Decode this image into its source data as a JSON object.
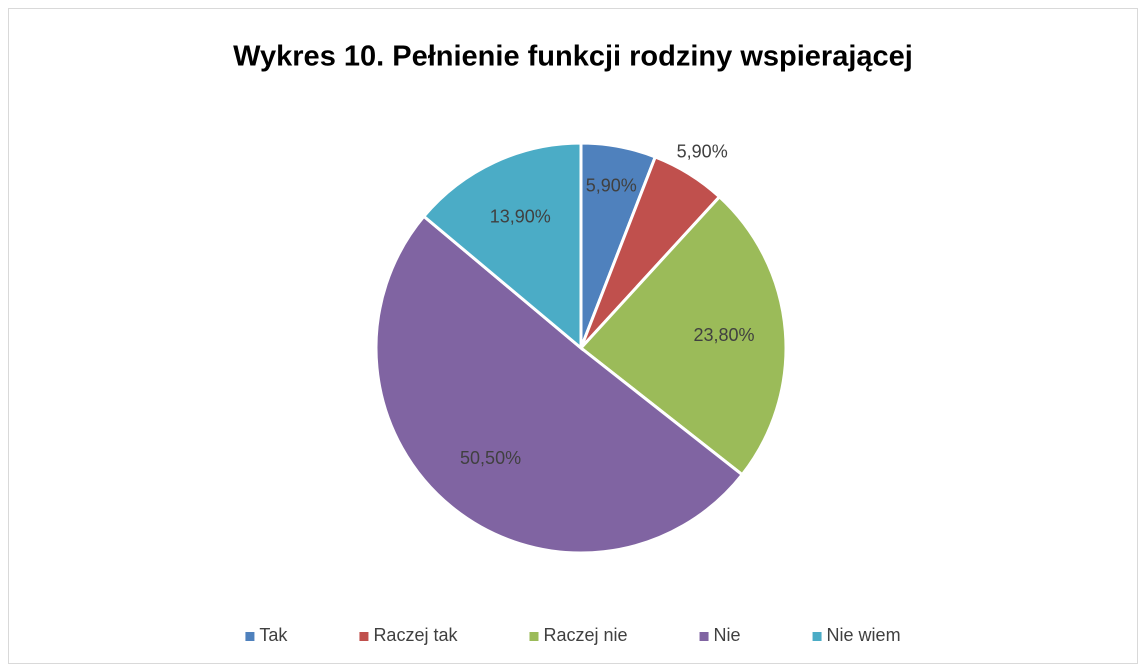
{
  "chart_data": {
    "type": "pie",
    "title": "Wykres 10. Pełnienie funkcji rodziny wspierającej",
    "categories": [
      "Tak",
      "Raczej tak",
      "Raczej nie",
      "Nie",
      "Nie wiem"
    ],
    "values": [
      5.9,
      5.9,
      23.8,
      50.5,
      13.9
    ],
    "value_labels": [
      "5,90%",
      "5,90%",
      "23,80%",
      "50,50%",
      "13,90%"
    ],
    "colors": [
      "#4f81bd",
      "#c0504d",
      "#9bbb59",
      "#8064a2",
      "#4bacc6"
    ],
    "legend": "bottom"
  }
}
